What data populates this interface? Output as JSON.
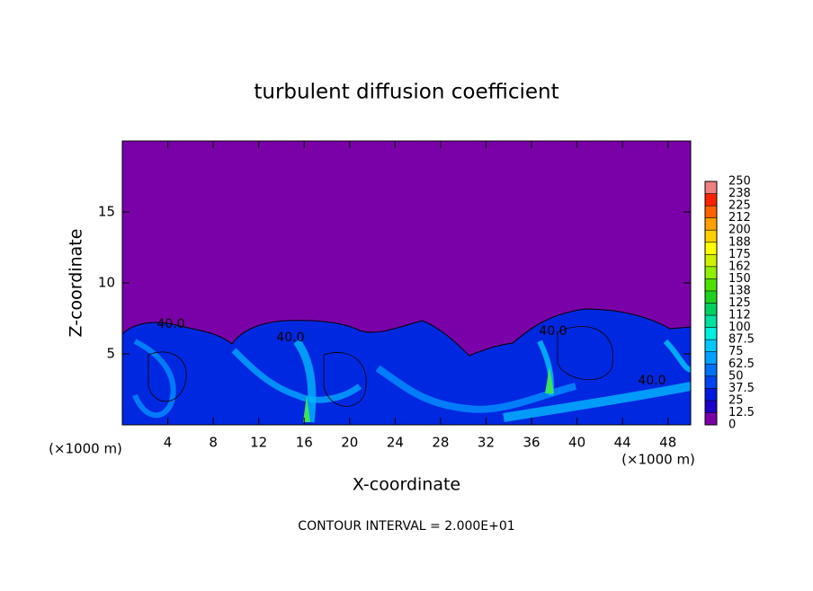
{
  "chart_data": {
    "type": "contour",
    "title": "turbulent diffusion coefficient",
    "x_label": "X-coordinate",
    "y_label": "Z-coordinate",
    "x_unit": "(×1000 m)",
    "annotation": "CONTOUR INTERVAL = 2.000E+01",
    "xlim": [
      0,
      50
    ],
    "xticks": [
      4,
      8,
      12,
      16,
      20,
      24,
      28,
      32,
      36,
      40,
      44,
      48
    ],
    "ylim": [
      0,
      20
    ],
    "yticks": [
      5,
      10,
      15
    ],
    "contour_labels": [
      "40.0",
      "40.0",
      "40.0",
      "40.0"
    ],
    "colorbar": {
      "lim": [
        0,
        250
      ],
      "ticks": [
        0,
        12.5,
        25,
        37.5,
        50,
        62.5,
        75,
        87.5,
        100,
        {
          "value": 112.5,
          "label": "112"
        },
        125,
        {
          "value": 137.5,
          "label": "138"
        },
        150,
        {
          "value": 162.5,
          "label": "162"
        },
        175,
        {
          "value": 187.5,
          "label": "188"
        },
        200,
        {
          "value": 212.5,
          "label": "212"
        },
        225,
        {
          "value": 237.5,
          "label": "238"
        },
        250
      ],
      "colors": [
        "#7a00a8",
        "#1c00c8",
        "#0018e0",
        "#0044f0",
        "#0070f8",
        "#00a0ff",
        "#00c8ff",
        "#00f0e0",
        "#00e0a0",
        "#00d060",
        "#20d020",
        "#50e000",
        "#90f000",
        "#d0f000",
        "#ffff00",
        "#ffd000",
        "#ffa000",
        "#ff6000",
        "#ff2000",
        "#f08080"
      ]
    }
  }
}
